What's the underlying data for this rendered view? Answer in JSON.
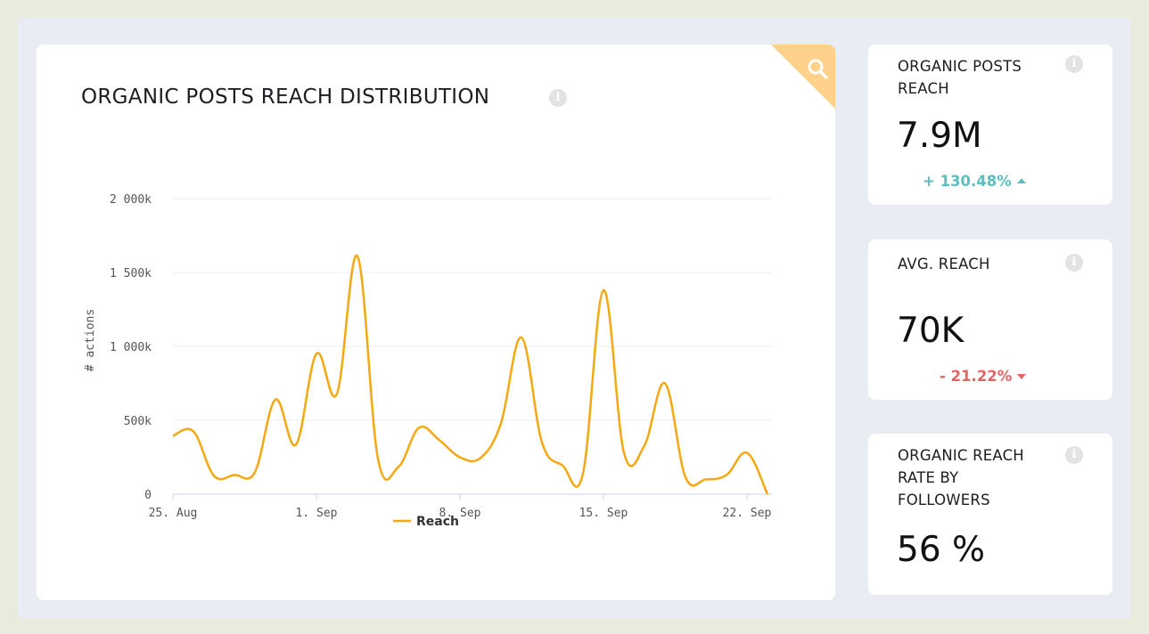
{
  "main": {
    "title": "ORGANIC POSTS REACH DISTRIBUTION",
    "info_icon": "info-icon",
    "zoom_icon": "search-icon"
  },
  "kpis": [
    {
      "title_lines": [
        "ORGANIC POSTS",
        "REACH"
      ],
      "value": "7.9M",
      "delta": "+ 130.48%",
      "direction": "up",
      "delta_color": "#5bbfbf"
    },
    {
      "title_lines": [
        "AVG. REACH"
      ],
      "value": "70K",
      "delta": "- 21.22%",
      "direction": "down",
      "delta_color": "#e06565"
    },
    {
      "title_lines": [
        "ORGANIC REACH",
        "RATE BY",
        "FOLLOWERS"
      ],
      "value": "56 %",
      "delta": "",
      "direction": "",
      "delta_color": ""
    }
  ],
  "colors": {
    "line": "#f5a811",
    "accent_corner": "#ffd18a"
  },
  "chart_data": {
    "type": "line",
    "title": "ORGANIC POSTS REACH DISTRIBUTION",
    "xlabel": "",
    "ylabel": "# actions",
    "ylim": [
      0,
      2000
    ],
    "yticks": [
      0,
      500,
      1000,
      1500,
      2000
    ],
    "ytick_labels": [
      "0",
      "500k",
      "1 000k",
      "1 500k",
      "2 000k"
    ],
    "xticks": [
      "25. Aug",
      "1. Sep",
      "8. Sep",
      "15. Sep",
      "22. Sep"
    ],
    "grid": true,
    "legend": "bottom-center",
    "x": [
      "2024-08-25",
      "2024-08-26",
      "2024-08-27",
      "2024-08-28",
      "2024-08-29",
      "2024-08-30",
      "2024-08-31",
      "2024-09-01",
      "2024-09-02",
      "2024-09-03",
      "2024-09-04",
      "2024-09-05",
      "2024-09-06",
      "2024-09-07",
      "2024-09-08",
      "2024-09-09",
      "2024-09-10",
      "2024-09-11",
      "2024-09-12",
      "2024-09-13",
      "2024-09-14",
      "2024-09-15",
      "2024-09-16",
      "2024-09-17",
      "2024-09-18",
      "2024-09-19",
      "2024-09-20",
      "2024-09-21",
      "2024-09-22",
      "2024-09-23"
    ],
    "series": [
      {
        "name": "Reach",
        "values": [
          395,
          425,
          125,
          130,
          150,
          640,
          335,
          950,
          680,
          1610,
          240,
          185,
          450,
          365,
          250,
          245,
          480,
          1060,
          350,
          195,
          140,
          1380,
          280,
          330,
          750,
          115,
          100,
          130,
          280,
          0
        ]
      }
    ]
  }
}
